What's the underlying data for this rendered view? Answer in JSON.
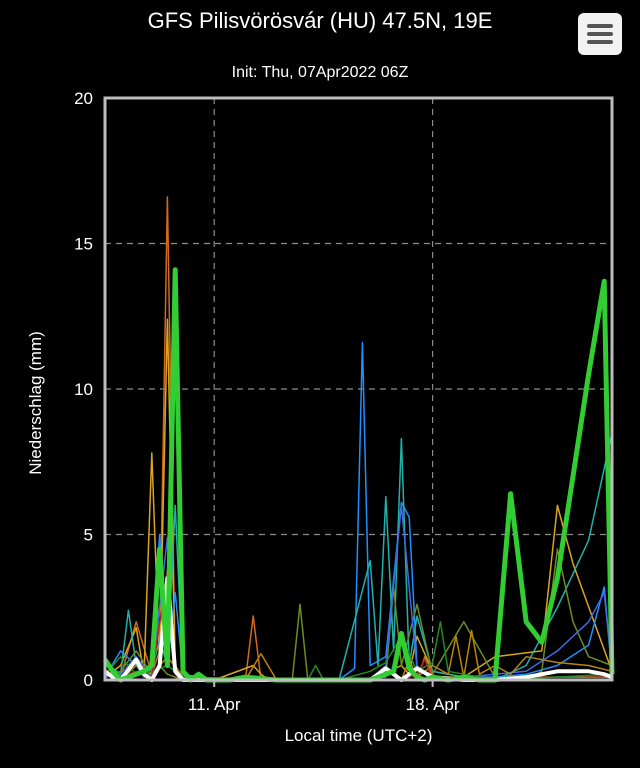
{
  "header": {
    "title": "GFS Pilisvörösvár (HU) 47.5N, 19E",
    "subtitle": "Init: Thu, 07Apr2022 06Z",
    "menu_icon": "hamburger-menu-icon"
  },
  "chart_data": {
    "type": "line",
    "title": "GFS Pilisvörösvár (HU) 47.5N, 19E",
    "subtitle": "Init: Thu, 07Apr2022 06Z",
    "xlabel": "Local time (UTC+2)",
    "ylabel": "Niederschlag (mm)",
    "ylim": [
      0,
      20
    ],
    "xlim": [
      7.5,
      23.75
    ],
    "x_ticks": [
      {
        "value": 11,
        "label": "11. Apr"
      },
      {
        "value": 18,
        "label": "18. Apr"
      }
    ],
    "y_ticks": [
      0,
      5,
      10,
      15,
      20
    ],
    "grid": true,
    "grid_style": "dashed",
    "series": [
      {
        "color": "#32cd32",
        "width": 5,
        "x": [
          7.5,
          7.75,
          8.0,
          8.25,
          8.5,
          8.75,
          9.0,
          9.25,
          9.5,
          9.75,
          10.0,
          10.25,
          10.5,
          10.75,
          11.0,
          11.5,
          12.0,
          13.0,
          14.0,
          15.0,
          16.0,
          16.75,
          17.0,
          17.25,
          17.5,
          17.75,
          18.0,
          18.5,
          19.0,
          19.5,
          20.0,
          20.5,
          21.0,
          21.5,
          22.0,
          22.5,
          23.0,
          23.5,
          23.75
        ],
        "y": [
          0.7,
          0.3,
          0.0,
          0.1,
          0.2,
          0.3,
          0.5,
          4.5,
          0.5,
          14.1,
          0.3,
          0.0,
          0.2,
          0.0,
          0.0,
          0.0,
          0.1,
          0.0,
          0.0,
          0.0,
          0.0,
          0.3,
          1.6,
          0.4,
          0.1,
          0.0,
          0.1,
          0.0,
          0.1,
          0.0,
          0.0,
          6.4,
          2.0,
          1.3,
          3.5,
          7.0,
          10.5,
          13.7,
          0.2
        ]
      },
      {
        "color": "#ffffff",
        "width": 4,
        "x": [
          7.5,
          7.75,
          8.0,
          8.5,
          8.75,
          9.0,
          9.25,
          9.5,
          9.75,
          10.0,
          11.0,
          12.0,
          13.0,
          14.0,
          15.0,
          16.0,
          16.5,
          17.0,
          17.5,
          18.0,
          19.0,
          20.0,
          21.0,
          22.0,
          23.0,
          23.5,
          23.75
        ],
        "y": [
          0.3,
          0.1,
          0.0,
          0.7,
          0.2,
          0.0,
          0.5,
          3.5,
          0.3,
          0.0,
          0.0,
          0.0,
          0.0,
          0.0,
          0.0,
          0.0,
          0.4,
          0.0,
          0.4,
          0.1,
          0.0,
          0.0,
          0.1,
          0.3,
          0.3,
          0.2,
          0.1
        ]
      },
      {
        "color": "#d2691e",
        "width": 1.5,
        "x": [
          7.5,
          8.0,
          8.5,
          9.0,
          9.25,
          9.5,
          9.75,
          10.0,
          10.5,
          11.0,
          12.0,
          12.25,
          12.5,
          13.0,
          17.5,
          17.75,
          18.0,
          23.75
        ],
        "y": [
          0.2,
          0.1,
          2.0,
          0.2,
          1.0,
          16.6,
          0.5,
          0.1,
          0.1,
          0.0,
          0.0,
          2.2,
          0.0,
          0.0,
          0.0,
          0.8,
          0.1,
          0.1
        ]
      },
      {
        "color": "#daa520",
        "width": 1.5,
        "x": [
          7.5,
          8.0,
          8.5,
          8.75,
          9.0,
          9.25,
          9.5,
          9.75,
          10.0,
          11.0,
          12.25,
          12.5,
          12.75,
          16.0,
          17.0,
          17.25,
          17.5,
          18.0,
          19.0,
          20.0,
          21.5,
          22.0,
          22.5,
          23.75
        ],
        "y": [
          0.1,
          0.5,
          1.8,
          0.2,
          7.8,
          0.5,
          12.4,
          0.3,
          0.1,
          0.0,
          0.5,
          0.2,
          0.0,
          0.0,
          0.5,
          0.2,
          1.5,
          0.3,
          0.1,
          0.8,
          1.0,
          6.0,
          4.0,
          0.3
        ]
      },
      {
        "color": "#1e90ff",
        "width": 1.5,
        "x": [
          7.5,
          8.0,
          8.5,
          9.0,
          9.25,
          9.5,
          9.75,
          10.0,
          11.0,
          15.0,
          15.5,
          15.75,
          16.0,
          16.5,
          17.0,
          17.25,
          17.5,
          17.75,
          18.0,
          19.0,
          20.0,
          21.0,
          22.0,
          23.0,
          23.5,
          23.75
        ],
        "y": [
          0.1,
          1.0,
          0.5,
          0.3,
          5.0,
          0.5,
          3.0,
          0.2,
          0.0,
          0.0,
          0.4,
          11.6,
          0.5,
          0.8,
          6.1,
          5.6,
          0.5,
          0.2,
          0.0,
          0.1,
          0.1,
          0.2,
          0.5,
          1.2,
          3.2,
          0.2
        ]
      },
      {
        "color": "#20b2aa",
        "width": 1.5,
        "x": [
          7.5,
          8.0,
          8.25,
          8.5,
          8.75,
          9.0,
          9.25,
          9.5,
          9.75,
          10.0,
          11.0,
          15.0,
          16.0,
          16.25,
          16.5,
          16.75,
          17.0,
          17.25,
          17.5,
          18.0,
          19.0,
          20.0,
          21.0,
          22.0,
          23.0,
          23.75
        ],
        "y": [
          0.6,
          0.2,
          2.4,
          0.5,
          0.1,
          0.3,
          1.4,
          0.5,
          6.0,
          0.2,
          0.0,
          0.0,
          4.1,
          0.5,
          6.3,
          1.0,
          8.3,
          0.5,
          2.2,
          0.3,
          0.1,
          0.0,
          0.5,
          2.5,
          4.8,
          8.5
        ]
      },
      {
        "color": "#6b8e23",
        "width": 1.5,
        "x": [
          7.5,
          8.0,
          8.5,
          9.0,
          9.25,
          9.5,
          10.0,
          11.0,
          13.5,
          13.75,
          14.0,
          15.0,
          16.5,
          16.75,
          17.0,
          17.5,
          18.0,
          19.0,
          20.0,
          21.0,
          21.5,
          22.0,
          22.5,
          23.0,
          23.75
        ],
        "y": [
          0.1,
          0.3,
          1.0,
          0.2,
          0.5,
          0.2,
          0.0,
          0.0,
          0.0,
          2.6,
          0.0,
          0.0,
          0.1,
          3.2,
          0.5,
          2.6,
          0.2,
          2.0,
          0.1,
          0.0,
          0.3,
          4.5,
          2.0,
          0.8,
          0.5
        ]
      },
      {
        "color": "#4169e1",
        "width": 1.5,
        "x": [
          7.5,
          8.0,
          8.5,
          9.0,
          9.5,
          9.75,
          10.0,
          11.0,
          16.0,
          16.5,
          17.0,
          17.5,
          18.0,
          20.0,
          21.0,
          22.0,
          23.0,
          23.5,
          23.75
        ],
        "y": [
          0.1,
          0.2,
          0.8,
          0.1,
          4.9,
          0.3,
          0.0,
          0.0,
          0.0,
          0.5,
          6.0,
          0.4,
          0.0,
          0.2,
          0.3,
          1.0,
          2.0,
          3.0,
          0.3
        ]
      },
      {
        "color": "#b8860b",
        "width": 1.5,
        "x": [
          7.5,
          8.0,
          8.5,
          9.0,
          9.5,
          10.0,
          11.0,
          12.0,
          12.5,
          13.0,
          17.0,
          17.25,
          17.5,
          18.0,
          18.5,
          18.75,
          19.0,
          19.25,
          19.5,
          20.0,
          20.5,
          21.0,
          22.0,
          23.0,
          23.75
        ],
        "y": [
          0.0,
          0.0,
          0.5,
          0.2,
          0.8,
          0.1,
          0.0,
          0.0,
          0.9,
          0.0,
          0.0,
          0.7,
          0.1,
          0.5,
          0.2,
          1.5,
          0.1,
          1.7,
          0.2,
          0.5,
          0.2,
          0.8,
          0.6,
          0.5,
          0.3
        ]
      },
      {
        "color": "#228b22",
        "width": 1.5,
        "x": [
          7.5,
          8.0,
          8.5,
          9.0,
          9.5,
          10.0,
          14.0,
          14.25,
          14.5,
          15.0,
          16.0,
          16.5,
          17.0,
          17.5,
          18.0,
          18.25,
          18.5,
          19.0,
          20.0,
          23.75
        ],
        "y": [
          0.2,
          0.8,
          0.2,
          0.3,
          0.5,
          0.1,
          0.0,
          0.5,
          0.0,
          0.0,
          0.3,
          0.6,
          1.5,
          0.3,
          0.6,
          2.0,
          0.3,
          0.2,
          0.0,
          0.2
        ]
      },
      {
        "color": "#b22222",
        "width": 1.5,
        "x": [
          7.5,
          8.0,
          8.5,
          9.0,
          9.5,
          9.75,
          10.0,
          11.0,
          17.0,
          17.5,
          17.75,
          18.0,
          23.75
        ],
        "y": [
          0.0,
          0.1,
          0.3,
          0.1,
          3.8,
          0.2,
          0.0,
          0.0,
          0.0,
          0.2,
          0.7,
          0.0,
          0.0
        ]
      }
    ]
  },
  "axes": {
    "y_tick_labels": [
      "0",
      "5",
      "10",
      "15",
      "20"
    ],
    "x_tick_labels": [
      "11. Apr",
      "18. Apr"
    ],
    "ylabel": "Niederschlag (mm)",
    "xlabel": "Local time (UTC+2)"
  }
}
